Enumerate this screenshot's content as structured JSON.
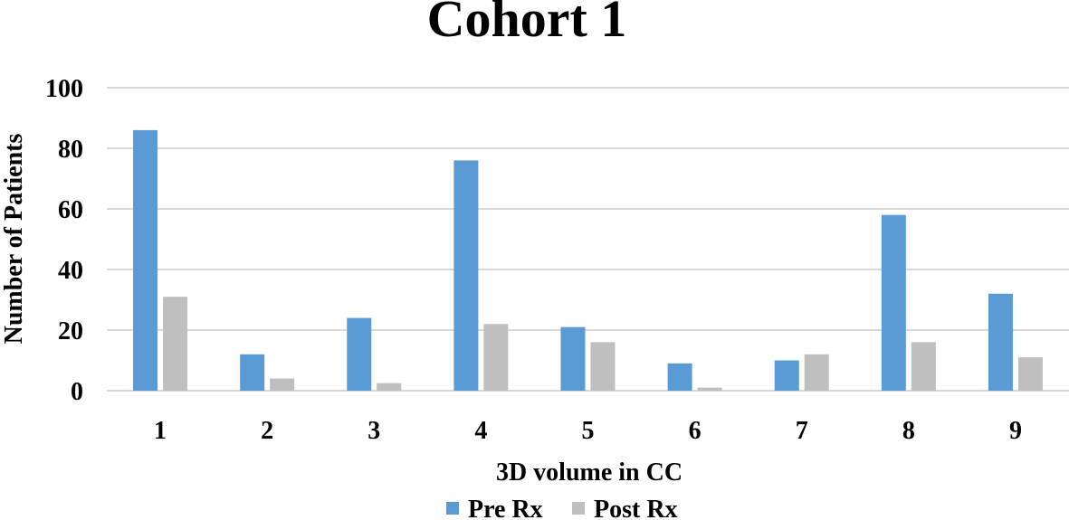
{
  "chart_data": {
    "type": "bar",
    "title": "Cohort 1",
    "xlabel": "3D volume in CC",
    "ylabel": "Number of Patients",
    "categories": [
      "1",
      "2",
      "3",
      "4",
      "5",
      "6",
      "7",
      "8",
      "9"
    ],
    "series": [
      {
        "name": "Pre Rx",
        "color": "#5b9bd5",
        "values": [
          86,
          12,
          24,
          76,
          21,
          9,
          10,
          58,
          32
        ]
      },
      {
        "name": "Post Rx",
        "color": "#bfbfbf",
        "values": [
          31,
          4,
          2.5,
          22,
          16,
          1,
          12,
          16,
          11
        ]
      }
    ],
    "ylim": [
      0,
      100
    ],
    "yticks": [
      "0",
      "20",
      "40",
      "60",
      "80",
      "100"
    ],
    "grid": true,
    "legend_position": "bottom"
  }
}
